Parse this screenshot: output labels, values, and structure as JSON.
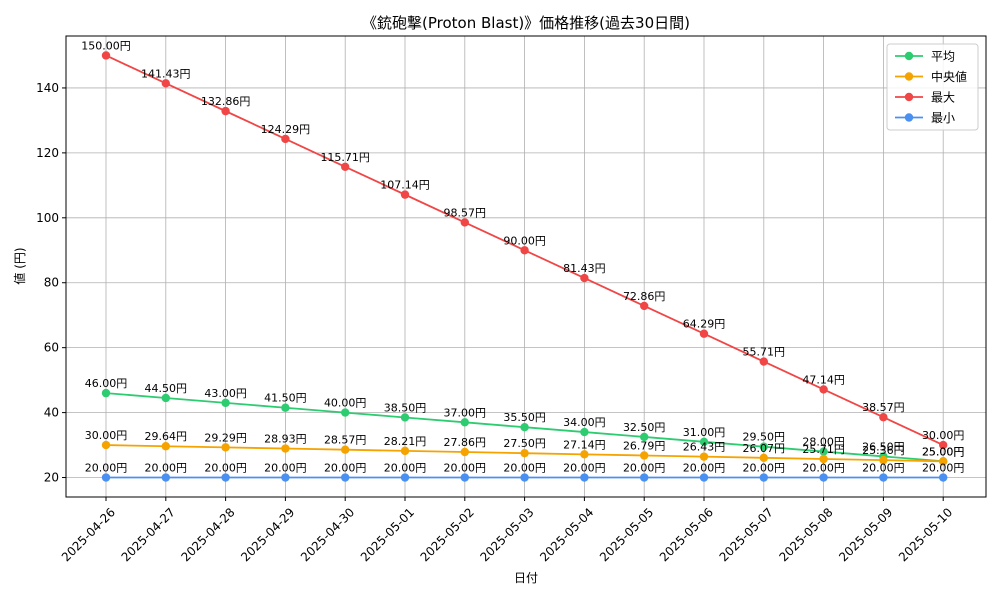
{
  "chart_data": {
    "type": "line",
    "title": "《銃砲撃(Proton Blast)》価格推移(過去30日間)",
    "xlabel": "日付",
    "ylabel": "値 (円)",
    "categories": [
      "2025-04-26",
      "2025-04-27",
      "2025-04-28",
      "2025-04-29",
      "2025-04-30",
      "2025-05-01",
      "2025-05-02",
      "2025-05-03",
      "2025-05-04",
      "2025-05-05",
      "2025-05-06",
      "2025-05-07",
      "2025-05-08",
      "2025-05-09",
      "2025-05-10"
    ],
    "ylim": [
      14,
      156
    ],
    "yticks": [
      20,
      40,
      60,
      80,
      100,
      120,
      140
    ],
    "grid": true,
    "legend_position": "top-right",
    "value_suffix": "円",
    "series": [
      {
        "name": "平均",
        "color": "#2ecc71",
        "values": [
          46.0,
          44.5,
          43.0,
          41.5,
          40.0,
          38.5,
          37.0,
          35.5,
          34.0,
          32.5,
          31.0,
          29.5,
          28.0,
          26.5,
          25.0
        ]
      },
      {
        "name": "中央値",
        "color": "#f5a300",
        "values": [
          30.0,
          29.64,
          29.29,
          28.93,
          28.57,
          28.21,
          27.86,
          27.5,
          27.14,
          26.79,
          26.43,
          26.07,
          25.71,
          25.36,
          25.0
        ]
      },
      {
        "name": "最大",
        "color": "#f04646",
        "values": [
          150.0,
          141.43,
          132.86,
          124.29,
          115.71,
          107.14,
          98.57,
          90.0,
          81.43,
          72.86,
          64.29,
          55.71,
          47.14,
          38.57,
          30.0
        ]
      },
      {
        "name": "最小",
        "color": "#4a90f0",
        "values": [
          20.0,
          20.0,
          20.0,
          20.0,
          20.0,
          20.0,
          20.0,
          20.0,
          20.0,
          20.0,
          20.0,
          20.0,
          20.0,
          20.0,
          20.0
        ]
      }
    ]
  }
}
